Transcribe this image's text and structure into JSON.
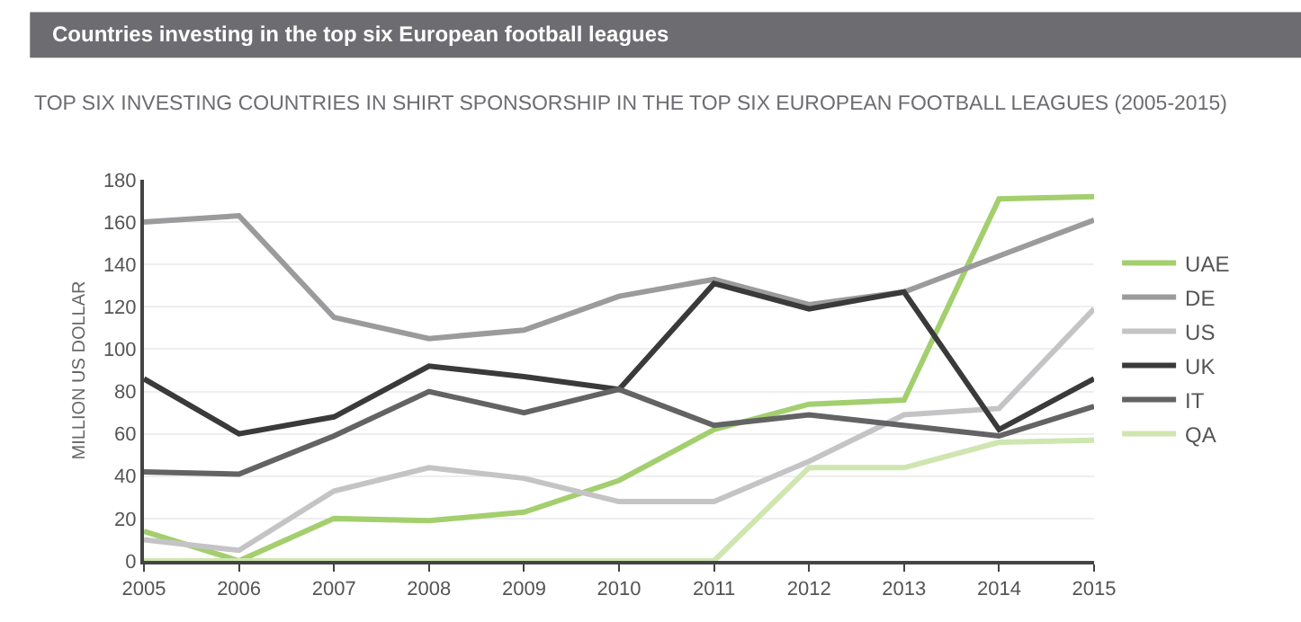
{
  "chart_data": {
    "type": "line",
    "title": "Countries investing in the top six European football leagues",
    "subtitle": "TOP SIX INVESTING COUNTRIES IN SHIRT SPONSORSHIP IN THE TOP SIX EUROPEAN FOOTBALL LEAGUES (2005-2015)",
    "ylabel": "MILLION US DOLLAR",
    "x": [
      2005,
      2006,
      2007,
      2008,
      2009,
      2010,
      2011,
      2012,
      2013,
      2014,
      2015
    ],
    "xlim": [
      2005,
      2015
    ],
    "xticks": [
      2005,
      2006,
      2007,
      2008,
      2009,
      2010,
      2011,
      2012,
      2013,
      2014,
      2015
    ],
    "ylim": [
      0,
      180
    ],
    "yticks": [
      0,
      20,
      40,
      60,
      80,
      100,
      120,
      140,
      160,
      180
    ],
    "grid": "y",
    "legend": "right",
    "marker": "none",
    "line_style": "solid",
    "series": [
      {
        "name": "UAE",
        "color": "#a3cf6e",
        "values": [
          14,
          0,
          20,
          19,
          23,
          38,
          62,
          74,
          76,
          171,
          172
        ]
      },
      {
        "name": "DE",
        "color": "#9b9b9d",
        "values": [
          160,
          163,
          115,
          105,
          109,
          125,
          133,
          121,
          127,
          144,
          161
        ]
      },
      {
        "name": "US",
        "color": "#c4c4c6",
        "values": [
          10,
          5,
          33,
          44,
          39,
          28,
          28,
          47,
          69,
          72,
          119
        ]
      },
      {
        "name": "UK",
        "color": "#3a3a3a",
        "values": [
          86,
          60,
          68,
          92,
          87,
          81,
          131,
          119,
          127,
          62,
          86
        ]
      },
      {
        "name": "IT",
        "color": "#636365",
        "values": [
          42,
          41,
          59,
          80,
          70,
          81,
          64,
          69,
          64,
          59,
          73
        ]
      },
      {
        "name": "QA",
        "color": "#cfe6b0",
        "values": [
          0,
          0,
          0,
          0,
          0,
          0,
          0,
          44,
          44,
          56,
          57
        ]
      }
    ]
  }
}
